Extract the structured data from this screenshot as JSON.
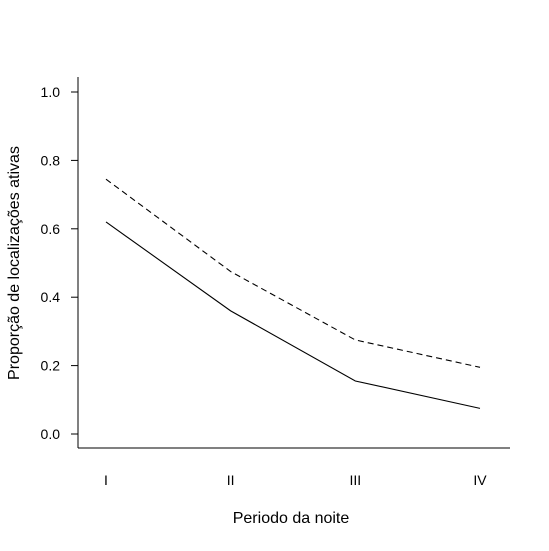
{
  "chart_data": {
    "type": "line",
    "title": "",
    "xlabel": "Periodo da noite",
    "ylabel": "Proporção de localizações ativas",
    "categories": [
      "I",
      "II",
      "III",
      "IV"
    ],
    "ylim": [
      0.0,
      1.0
    ],
    "yticks": [
      0.0,
      0.2,
      0.4,
      0.6,
      0.8,
      1.0
    ],
    "ytick_labels": [
      "0.0",
      "0.2",
      "0.4",
      "0.6",
      "0.8",
      "1.0"
    ],
    "grid": false,
    "legend": "none",
    "series": [
      {
        "values": [
          0.62,
          0.36,
          0.155,
          0.075
        ],
        "style": "solid",
        "color": "#000000"
      },
      {
        "values": [
          0.745,
          0.475,
          0.275,
          0.195
        ],
        "style": "dashed",
        "color": "#000000"
      }
    ]
  }
}
